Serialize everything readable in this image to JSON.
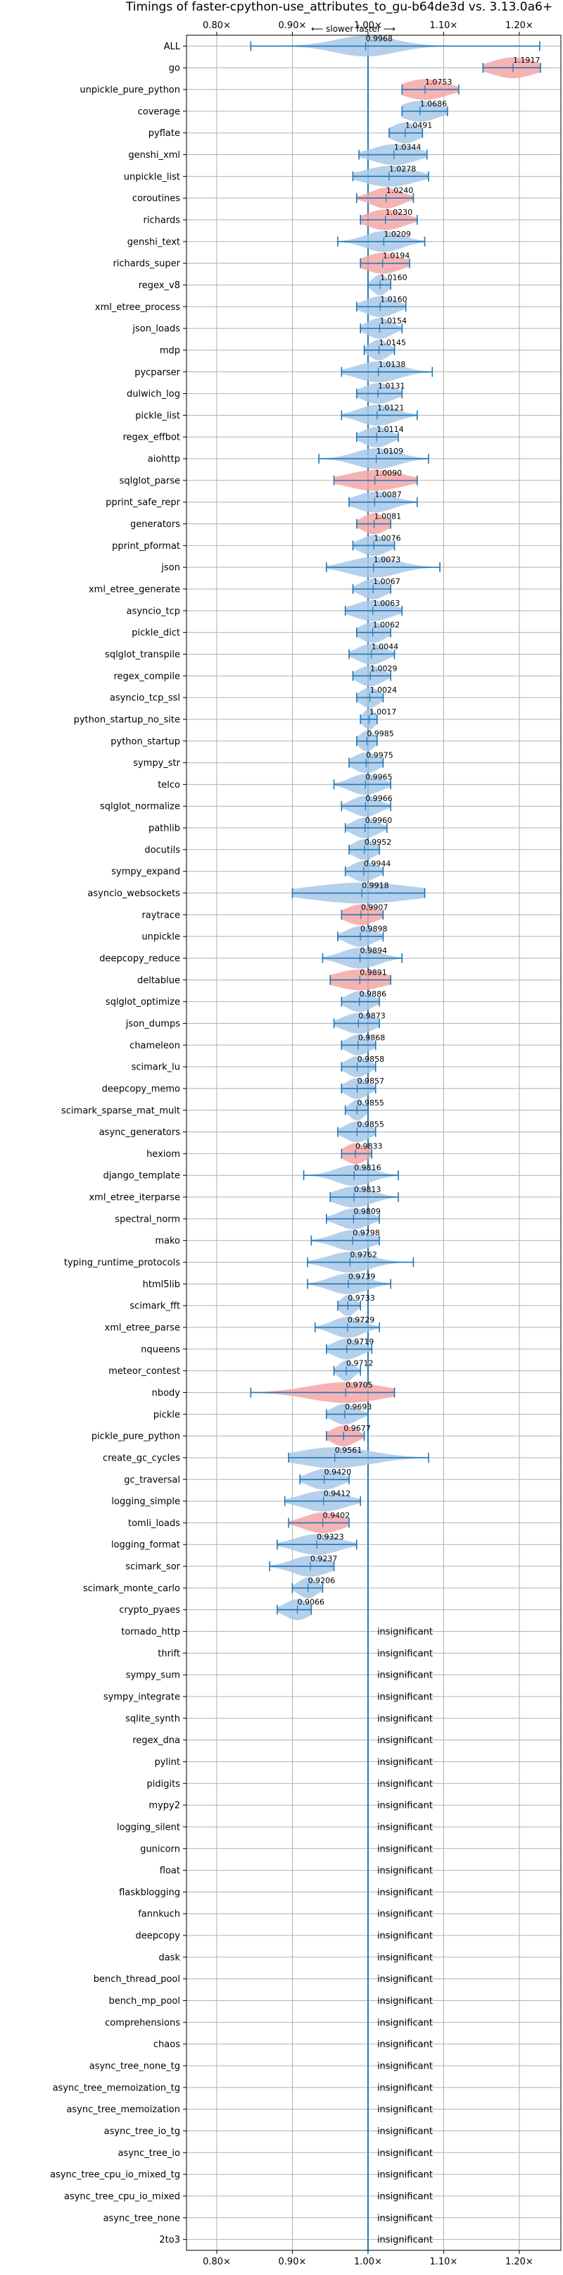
{
  "chart_data": {
    "type": "violin",
    "title": "Timings of faster-cpython-use_attributes_to_gu-b64de3d vs. 3.13.0a6+",
    "xlabel": "",
    "ylabel": "",
    "direction_label": "⟵ slower   faster ⟶",
    "xlim": [
      0.76,
      1.255
    ],
    "xticks": [
      {
        "value": 0.8,
        "label": "0.80×"
      },
      {
        "value": 0.9,
        "label": "0.90×"
      },
      {
        "value": 1.0,
        "label": "1.00×"
      },
      {
        "value": 1.1,
        "label": "1.10×"
      },
      {
        "value": 1.2,
        "label": "1.20×"
      }
    ],
    "grid": true,
    "insignificant_label": "insignificant",
    "benchmarks": [
      {
        "name": "ALL",
        "value": 0.9968,
        "label": "0.9968",
        "lo": 0.845,
        "hi": 1.227,
        "spread": 0.05,
        "color": "blue"
      },
      {
        "name": "go",
        "value": 1.1917,
        "label": "1.1917",
        "lo": 1.152,
        "hi": 1.228,
        "spread": 0.035,
        "color": "red"
      },
      {
        "name": "unpickle_pure_python",
        "value": 1.0753,
        "label": "1.0753",
        "lo": 1.045,
        "hi": 1.12,
        "spread": 0.035,
        "color": "red"
      },
      {
        "name": "coverage",
        "value": 1.0686,
        "label": "1.0686",
        "lo": 1.045,
        "hi": 1.105,
        "spread": 0.03,
        "color": "blue"
      },
      {
        "name": "pyflate",
        "value": 1.0491,
        "label": "1.0491",
        "lo": 1.028,
        "hi": 1.072,
        "spread": 0.022,
        "color": "blue"
      },
      {
        "name": "genshi_xml",
        "value": 1.0344,
        "label": "1.0344",
        "lo": 0.988,
        "hi": 1.078,
        "spread": 0.035,
        "color": "blue"
      },
      {
        "name": "unpickle_list",
        "value": 1.0278,
        "label": "1.0278",
        "lo": 0.98,
        "hi": 1.08,
        "spread": 0.04,
        "color": "blue"
      },
      {
        "name": "coroutines",
        "value": 1.024,
        "label": "1.0240",
        "lo": 0.985,
        "hi": 1.06,
        "spread": 0.025,
        "color": "red"
      },
      {
        "name": "richards",
        "value": 1.023,
        "label": "1.0230",
        "lo": 0.99,
        "hi": 1.065,
        "spread": 0.03,
        "color": "red"
      },
      {
        "name": "genshi_text",
        "value": 1.0209,
        "label": "1.0209",
        "lo": 0.96,
        "hi": 1.075,
        "spread": 0.03,
        "color": "blue"
      },
      {
        "name": "richards_super",
        "value": 1.0194,
        "label": "1.0194",
        "lo": 0.99,
        "hi": 1.055,
        "spread": 0.03,
        "color": "red"
      },
      {
        "name": "regex_v8",
        "value": 1.016,
        "label": "1.0160",
        "lo": 1.0,
        "hi": 1.03,
        "spread": 0.012,
        "color": "blue"
      },
      {
        "name": "xml_etree_process",
        "value": 1.016,
        "label": "1.0160",
        "lo": 0.985,
        "hi": 1.05,
        "spread": 0.025,
        "color": "blue"
      },
      {
        "name": "json_loads",
        "value": 1.0154,
        "label": "1.0154",
        "lo": 0.99,
        "hi": 1.045,
        "spread": 0.02,
        "color": "blue"
      },
      {
        "name": "mdp",
        "value": 1.0145,
        "label": "1.0145",
        "lo": 0.995,
        "hi": 1.035,
        "spread": 0.015,
        "color": "blue"
      },
      {
        "name": "pycparser",
        "value": 1.0138,
        "label": "1.0138",
        "lo": 0.965,
        "hi": 1.085,
        "spread": 0.035,
        "color": "blue"
      },
      {
        "name": "dulwich_log",
        "value": 1.0131,
        "label": "1.0131",
        "lo": 0.985,
        "hi": 1.045,
        "spread": 0.025,
        "color": "blue"
      },
      {
        "name": "pickle_list",
        "value": 1.0121,
        "label": "1.0121",
        "lo": 0.965,
        "hi": 1.065,
        "spread": 0.03,
        "color": "blue"
      },
      {
        "name": "regex_effbot",
        "value": 1.0114,
        "label": "1.0114",
        "lo": 0.985,
        "hi": 1.04,
        "spread": 0.022,
        "color": "blue"
      },
      {
        "name": "aiohttp",
        "value": 1.0109,
        "label": "1.0109",
        "lo": 0.935,
        "hi": 1.08,
        "spread": 0.035,
        "color": "blue"
      },
      {
        "name": "sqlglot_parse",
        "value": 1.009,
        "label": "1.0090",
        "lo": 0.955,
        "hi": 1.065,
        "spread": 0.045,
        "color": "red"
      },
      {
        "name": "pprint_safe_repr",
        "value": 1.0087,
        "label": "1.0087",
        "lo": 0.975,
        "hi": 1.065,
        "spread": 0.03,
        "color": "blue"
      },
      {
        "name": "generators",
        "value": 1.0081,
        "label": "1.0081",
        "lo": 0.985,
        "hi": 1.03,
        "spread": 0.02,
        "color": "red"
      },
      {
        "name": "pprint_pformat",
        "value": 1.0076,
        "label": "1.0076",
        "lo": 0.98,
        "hi": 1.035,
        "spread": 0.022,
        "color": "blue"
      },
      {
        "name": "json",
        "value": 1.0073,
        "label": "1.0073",
        "lo": 0.945,
        "hi": 1.095,
        "spread": 0.04,
        "color": "blue"
      },
      {
        "name": "xml_etree_generate",
        "value": 1.0067,
        "label": "1.0067",
        "lo": 0.98,
        "hi": 1.03,
        "spread": 0.02,
        "color": "blue"
      },
      {
        "name": "asyncio_tcp",
        "value": 1.0063,
        "label": "1.0063",
        "lo": 0.97,
        "hi": 1.045,
        "spread": 0.03,
        "color": "blue"
      },
      {
        "name": "pickle_dict",
        "value": 1.0062,
        "label": "1.0062",
        "lo": 0.985,
        "hi": 1.03,
        "spread": 0.02,
        "color": "blue"
      },
      {
        "name": "sqlglot_transpile",
        "value": 1.0044,
        "label": "1.0044",
        "lo": 0.975,
        "hi": 1.035,
        "spread": 0.022,
        "color": "blue"
      },
      {
        "name": "regex_compile",
        "value": 1.0029,
        "label": "1.0029",
        "lo": 0.98,
        "hi": 1.03,
        "spread": 0.02,
        "color": "blue"
      },
      {
        "name": "asyncio_tcp_ssl",
        "value": 1.0024,
        "label": "1.0024",
        "lo": 0.985,
        "hi": 1.02,
        "spread": 0.015,
        "color": "blue"
      },
      {
        "name": "python_startup_no_site",
        "value": 1.0017,
        "label": "1.0017",
        "lo": 0.99,
        "hi": 1.012,
        "spread": 0.01,
        "color": "blue"
      },
      {
        "name": "python_startup",
        "value": 0.9985,
        "label": "0.9985",
        "lo": 0.985,
        "hi": 1.012,
        "spread": 0.012,
        "color": "blue"
      },
      {
        "name": "sympy_str",
        "value": 0.9975,
        "label": "0.9975",
        "lo": 0.975,
        "hi": 1.02,
        "spread": 0.02,
        "color": "blue"
      },
      {
        "name": "telco",
        "value": 0.9965,
        "label": "0.9965",
        "lo": 0.955,
        "hi": 1.03,
        "spread": 0.025,
        "color": "blue"
      },
      {
        "name": "sqlglot_normalize",
        "value": 0.9966,
        "label": "0.9966",
        "lo": 0.965,
        "hi": 1.03,
        "spread": 0.022,
        "color": "blue"
      },
      {
        "name": "pathlib",
        "value": 0.996,
        "label": "0.9960",
        "lo": 0.97,
        "hi": 1.025,
        "spread": 0.02,
        "color": "blue"
      },
      {
        "name": "docutils",
        "value": 0.9952,
        "label": "0.9952",
        "lo": 0.975,
        "hi": 1.015,
        "spread": 0.018,
        "color": "blue"
      },
      {
        "name": "sympy_expand",
        "value": 0.9944,
        "label": "0.9944",
        "lo": 0.97,
        "hi": 1.02,
        "spread": 0.02,
        "color": "blue"
      },
      {
        "name": "asyncio_websockets",
        "value": 0.9918,
        "label": "0.9918",
        "lo": 0.9,
        "hi": 1.075,
        "spread": 0.085,
        "color": "blue"
      },
      {
        "name": "raytrace",
        "value": 0.9907,
        "label": "0.9907",
        "lo": 0.965,
        "hi": 1.02,
        "spread": 0.025,
        "color": "red"
      },
      {
        "name": "unpickle",
        "value": 0.9898,
        "label": "0.9898",
        "lo": 0.96,
        "hi": 1.02,
        "spread": 0.022,
        "color": "blue"
      },
      {
        "name": "deepcopy_reduce",
        "value": 0.9894,
        "label": "0.9894",
        "lo": 0.94,
        "hi": 1.045,
        "spread": 0.03,
        "color": "blue"
      },
      {
        "name": "deltablue",
        "value": 0.9891,
        "label": "0.9891",
        "lo": 0.95,
        "hi": 1.03,
        "spread": 0.04,
        "color": "red"
      },
      {
        "name": "sqlglot_optimize",
        "value": 0.9886,
        "label": "0.9886",
        "lo": 0.965,
        "hi": 1.015,
        "spread": 0.02,
        "color": "blue"
      },
      {
        "name": "json_dumps",
        "value": 0.9873,
        "label": "0.9873",
        "lo": 0.955,
        "hi": 1.015,
        "spread": 0.025,
        "color": "blue"
      },
      {
        "name": "chameleon",
        "value": 0.9868,
        "label": "0.9868",
        "lo": 0.965,
        "hi": 1.01,
        "spread": 0.018,
        "color": "blue"
      },
      {
        "name": "scimark_lu",
        "value": 0.9858,
        "label": "0.9858",
        "lo": 0.965,
        "hi": 1.01,
        "spread": 0.018,
        "color": "blue"
      },
      {
        "name": "deepcopy_memo",
        "value": 0.9857,
        "label": "0.9857",
        "lo": 0.965,
        "hi": 1.01,
        "spread": 0.018,
        "color": "blue"
      },
      {
        "name": "scimark_sparse_mat_mult",
        "value": 0.9855,
        "label": "0.9855",
        "lo": 0.97,
        "hi": 1.0,
        "spread": 0.012,
        "color": "blue"
      },
      {
        "name": "async_generators",
        "value": 0.9855,
        "label": "0.9855",
        "lo": 0.96,
        "hi": 1.01,
        "spread": 0.02,
        "color": "blue"
      },
      {
        "name": "hexiom",
        "value": 0.9833,
        "label": "0.9833",
        "lo": 0.965,
        "hi": 1.005,
        "spread": 0.018,
        "color": "red"
      },
      {
        "name": "django_template",
        "value": 0.9816,
        "label": "0.9816",
        "lo": 0.915,
        "hi": 1.04,
        "spread": 0.03,
        "color": "blue"
      },
      {
        "name": "xml_etree_iterparse",
        "value": 0.9813,
        "label": "0.9813",
        "lo": 0.95,
        "hi": 1.04,
        "spread": 0.03,
        "color": "blue"
      },
      {
        "name": "spectral_norm",
        "value": 0.9809,
        "label": "0.9809",
        "lo": 0.945,
        "hi": 1.015,
        "spread": 0.025,
        "color": "blue"
      },
      {
        "name": "mako",
        "value": 0.9798,
        "label": "0.9798",
        "lo": 0.925,
        "hi": 1.015,
        "spread": 0.03,
        "color": "blue"
      },
      {
        "name": "typing_runtime_protocols",
        "value": 0.9762,
        "label": "0.9762",
        "lo": 0.92,
        "hi": 1.06,
        "spread": 0.035,
        "color": "blue"
      },
      {
        "name": "html5lib",
        "value": 0.9739,
        "label": "0.9739",
        "lo": 0.92,
        "hi": 1.03,
        "spread": 0.03,
        "color": "blue"
      },
      {
        "name": "scimark_fft",
        "value": 0.9733,
        "label": "0.9733",
        "lo": 0.96,
        "hi": 0.99,
        "spread": 0.012,
        "color": "blue"
      },
      {
        "name": "xml_etree_parse",
        "value": 0.9729,
        "label": "0.9729",
        "lo": 0.93,
        "hi": 1.015,
        "spread": 0.025,
        "color": "blue"
      },
      {
        "name": "nqueens",
        "value": 0.9719,
        "label": "0.9719",
        "lo": 0.945,
        "hi": 1.005,
        "spread": 0.022,
        "color": "blue"
      },
      {
        "name": "meteor_contest",
        "value": 0.9712,
        "label": "0.9712",
        "lo": 0.955,
        "hi": 0.99,
        "spread": 0.012,
        "color": "blue"
      },
      {
        "name": "nbody",
        "value": 0.9705,
        "label": "0.9705",
        "lo": 0.845,
        "hi": 1.035,
        "spread": 0.06,
        "color": "red"
      },
      {
        "name": "pickle",
        "value": 0.9693,
        "label": "0.9693",
        "lo": 0.945,
        "hi": 1.0,
        "spread": 0.02,
        "color": "blue"
      },
      {
        "name": "pickle_pure_python",
        "value": 0.9677,
        "label": "0.9677",
        "lo": 0.945,
        "hi": 0.995,
        "spread": 0.02,
        "color": "red"
      },
      {
        "name": "create_gc_cycles",
        "value": 0.9561,
        "label": "0.9561",
        "lo": 0.895,
        "hi": 1.08,
        "spread": 0.06,
        "color": "blue"
      },
      {
        "name": "gc_traversal",
        "value": 0.942,
        "label": "0.9420",
        "lo": 0.91,
        "hi": 0.975,
        "spread": 0.025,
        "color": "blue"
      },
      {
        "name": "logging_simple",
        "value": 0.9412,
        "label": "0.9412",
        "lo": 0.89,
        "hi": 0.99,
        "spread": 0.035,
        "color": "blue"
      },
      {
        "name": "tomli_loads",
        "value": 0.9402,
        "label": "0.9402",
        "lo": 0.895,
        "hi": 0.975,
        "spread": 0.03,
        "color": "red"
      },
      {
        "name": "logging_format",
        "value": 0.9323,
        "label": "0.9323",
        "lo": 0.88,
        "hi": 0.985,
        "spread": 0.035,
        "color": "blue"
      },
      {
        "name": "scimark_sor",
        "value": 0.9237,
        "label": "0.9237",
        "lo": 0.87,
        "hi": 0.955,
        "spread": 0.03,
        "color": "blue"
      },
      {
        "name": "scimark_monte_carlo",
        "value": 0.9206,
        "label": "0.9206",
        "lo": 0.9,
        "hi": 0.94,
        "spread": 0.015,
        "color": "blue"
      },
      {
        "name": "crypto_pyaes",
        "value": 0.9066,
        "label": "0.9066",
        "lo": 0.88,
        "hi": 0.925,
        "spread": 0.02,
        "color": "blue"
      },
      {
        "name": "tornado_http",
        "insignificant": true
      },
      {
        "name": "thrift",
        "insignificant": true
      },
      {
        "name": "sympy_sum",
        "insignificant": true
      },
      {
        "name": "sympy_integrate",
        "insignificant": true
      },
      {
        "name": "sqlite_synth",
        "insignificant": true
      },
      {
        "name": "regex_dna",
        "insignificant": true
      },
      {
        "name": "pylint",
        "insignificant": true
      },
      {
        "name": "pidigits",
        "insignificant": true
      },
      {
        "name": "mypy2",
        "insignificant": true
      },
      {
        "name": "logging_silent",
        "insignificant": true
      },
      {
        "name": "gunicorn",
        "insignificant": true
      },
      {
        "name": "float",
        "insignificant": true
      },
      {
        "name": "flaskblogging",
        "insignificant": true
      },
      {
        "name": "fannkuch",
        "insignificant": true
      },
      {
        "name": "deepcopy",
        "insignificant": true
      },
      {
        "name": "dask",
        "insignificant": true
      },
      {
        "name": "bench_thread_pool",
        "insignificant": true
      },
      {
        "name": "bench_mp_pool",
        "insignificant": true
      },
      {
        "name": "comprehensions",
        "insignificant": true
      },
      {
        "name": "chaos",
        "insignificant": true
      },
      {
        "name": "async_tree_none_tg",
        "insignificant": true
      },
      {
        "name": "async_tree_memoization_tg",
        "insignificant": true
      },
      {
        "name": "async_tree_memoization",
        "insignificant": true
      },
      {
        "name": "async_tree_io_tg",
        "insignificant": true
      },
      {
        "name": "async_tree_io",
        "insignificant": true
      },
      {
        "name": "async_tree_cpu_io_mixed_tg",
        "insignificant": true
      },
      {
        "name": "async_tree_cpu_io_mixed",
        "insignificant": true
      },
      {
        "name": "async_tree_none",
        "insignificant": true
      },
      {
        "name": "2to3",
        "insignificant": true
      }
    ],
    "colors": {
      "blue_fill": "#a8c8e8",
      "red_fill": "#f4a6a6",
      "bar": "#1f77b4",
      "grid": "#b0b0b0",
      "axis": "#000000"
    }
  }
}
